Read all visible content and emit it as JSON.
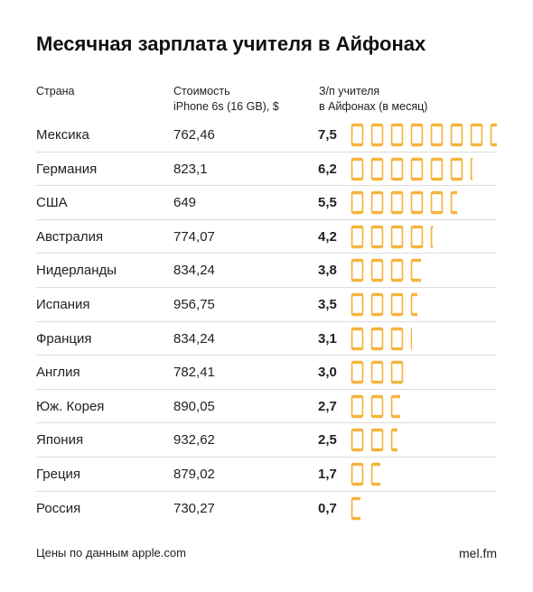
{
  "title": "Месячная зарплата учителя в Айфонах",
  "headers": {
    "country": "Страна",
    "cost_line1": "Стоимость",
    "cost_line2": "iPhone 6s (16 GB), $",
    "salary_line1": "З/п учителя",
    "salary_line2": "в Айфонах (в месяц)"
  },
  "footer": {
    "source": "Цены по данным apple.com",
    "brand": "mel.fm"
  },
  "colors": {
    "phone": "#f5b43c",
    "divider": "#dcdcdc",
    "text": "#222222"
  },
  "icon": "iphone-icon",
  "chart_data": {
    "type": "table",
    "title": "Месячная зарплата учителя в Айфонах",
    "columns": [
      "Страна",
      "Стоимость iPhone 6s (16 GB), $",
      "З/п учителя в Айфонах (в месяц)"
    ],
    "rows": [
      {
        "country": "Мексика",
        "price": "762,46",
        "value_label": "7,5",
        "value": 7.5
      },
      {
        "country": "Германия",
        "price": "823,1",
        "value_label": "6,2",
        "value": 6.2
      },
      {
        "country": "США",
        "price": "649",
        "value_label": "5,5",
        "value": 5.5
      },
      {
        "country": "Австралия",
        "price": "774,07",
        "value_label": "4,2",
        "value": 4.2
      },
      {
        "country": "Нидерланды",
        "price": "834,24",
        "value_label": "3,8",
        "value": 3.8
      },
      {
        "country": "Испания",
        "price": "956,75",
        "value_label": "3,5",
        "value": 3.5
      },
      {
        "country": "Франция",
        "price": "834,24",
        "value_label": "3,1",
        "value": 3.1
      },
      {
        "country": "Англия",
        "price": "782,41",
        "value_label": "3,0",
        "value": 3.0
      },
      {
        "country": "Юж. Корея",
        "price": "890,05",
        "value_label": "2,7",
        "value": 2.7
      },
      {
        "country": "Япония",
        "price": "932,62",
        "value_label": "2,5",
        "value": 2.5
      },
      {
        "country": "Греция",
        "price": "879,02",
        "value_label": "1,7",
        "value": 1.7
      },
      {
        "country": "Россия",
        "price": "730,27",
        "value_label": "0,7",
        "value": 0.7
      }
    ]
  }
}
